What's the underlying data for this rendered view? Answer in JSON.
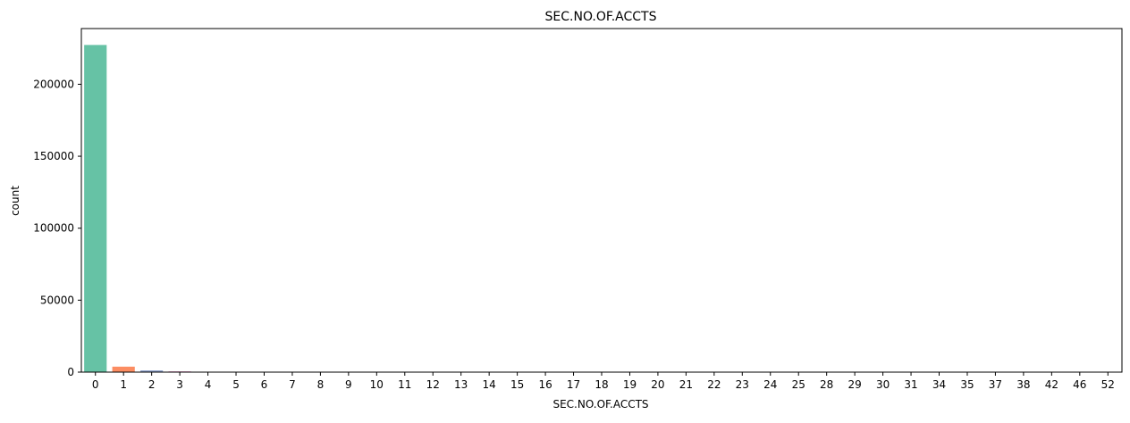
{
  "chart_data": {
    "type": "bar",
    "title": "SEC.NO.OF.ACCTS",
    "xlabel": "SEC.NO.OF.ACCTS",
    "ylabel": "count",
    "categories": [
      "0",
      "1",
      "2",
      "3",
      "4",
      "5",
      "6",
      "7",
      "8",
      "9",
      "10",
      "11",
      "12",
      "13",
      "14",
      "15",
      "16",
      "17",
      "18",
      "19",
      "20",
      "21",
      "22",
      "23",
      "24",
      "25",
      "28",
      "29",
      "30",
      "31",
      "34",
      "35",
      "37",
      "38",
      "42",
      "46",
      "52"
    ],
    "values": [
      227300,
      3800,
      1200,
      520,
      300,
      190,
      110,
      75,
      50,
      40,
      30,
      25,
      20,
      15,
      12,
      10,
      8,
      7,
      6,
      5,
      5,
      4,
      4,
      3,
      3,
      3,
      2,
      2,
      2,
      2,
      1,
      1,
      1,
      1,
      1,
      1,
      1
    ],
    "yticks": [
      0,
      50000,
      100000,
      150000,
      200000
    ],
    "ylim": [
      0,
      238700
    ],
    "grid": false,
    "colors": [
      "#66c2a5",
      "#fc8d62",
      "#8da0cb",
      "#e78ac3",
      "#a6d854",
      "#ffd92f",
      "#e5c494",
      "#b3b3b3"
    ]
  }
}
